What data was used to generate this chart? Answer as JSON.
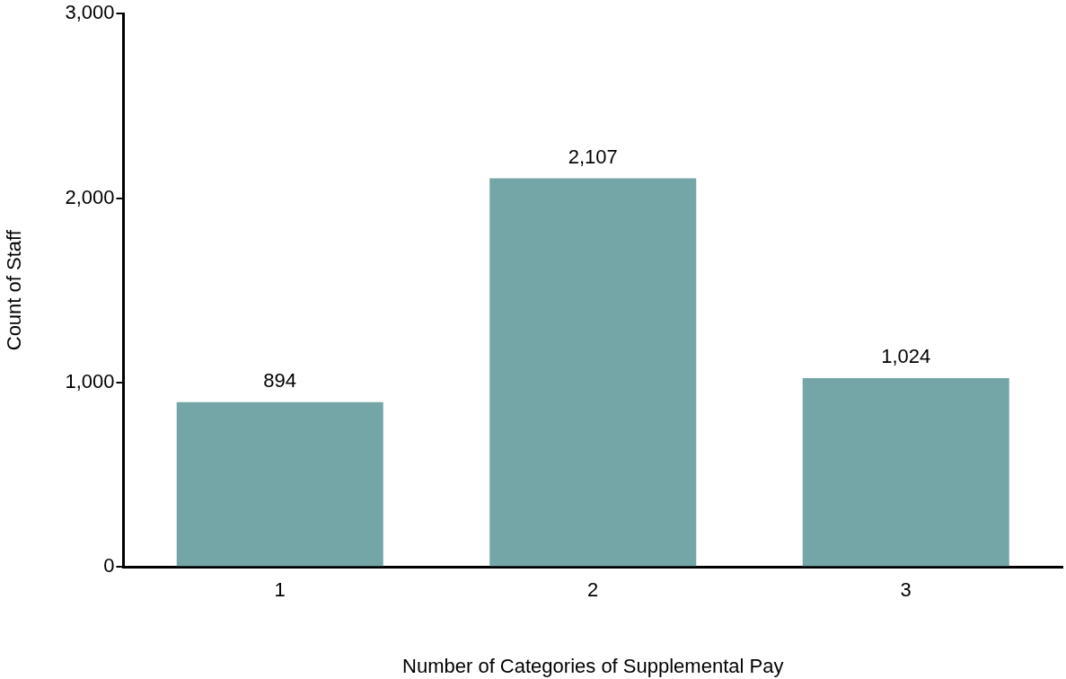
{
  "chart_data": {
    "type": "bar",
    "xlabel": "Number of Categories of Supplemental Pay",
    "ylabel": "Count of Staff",
    "categories": [
      "1",
      "2",
      "3"
    ],
    "values": [
      894,
      2107,
      1024
    ],
    "color": "#74a6a7",
    "value_labels": [
      "894",
      "2,107",
      "1,024"
    ],
    "ylim": [
      0,
      3000
    ],
    "yticks": [
      {
        "value": 0,
        "label": "0"
      },
      {
        "value": 1000,
        "label": "1,000"
      },
      {
        "value": 2000,
        "label": "2,000"
      },
      {
        "value": 3000,
        "label": "3,000"
      }
    ],
    "grid": false,
    "legend": false
  }
}
